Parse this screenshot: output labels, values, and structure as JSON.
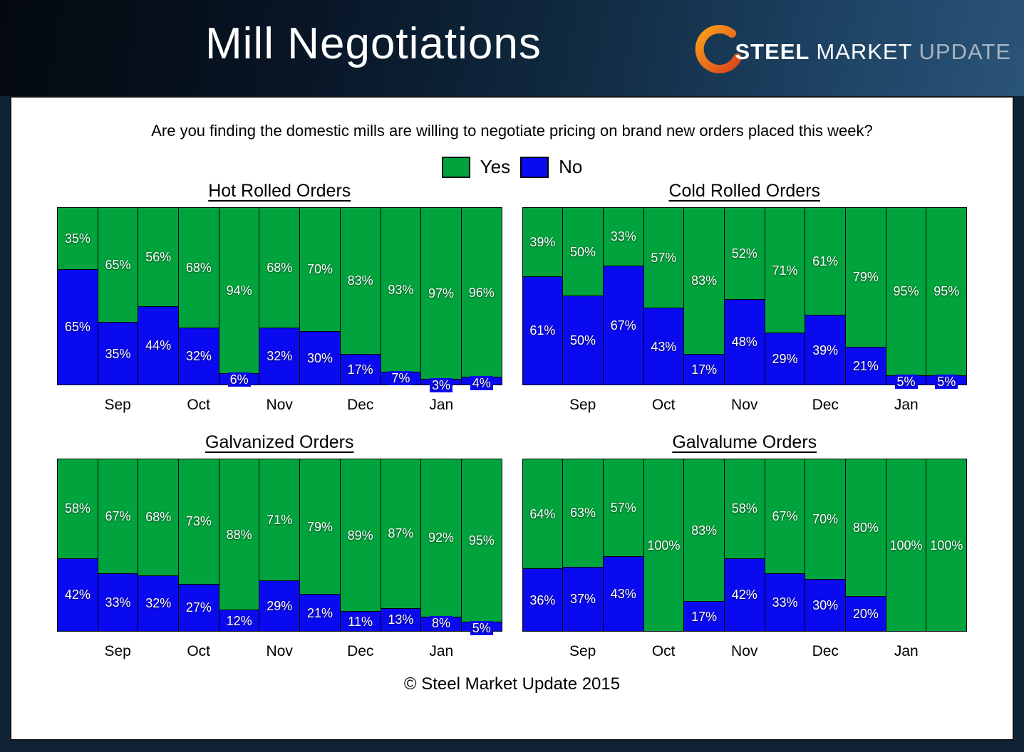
{
  "header": {
    "title": "Mill Negotiations",
    "logo": {
      "steel": "STEEL",
      "market": "MARKET",
      "update": "UPDATE",
      "accent_color": "#f58220"
    }
  },
  "question": "Are you finding the domestic mills are willing to negotiate pricing on brand new orders placed this week?",
  "legend": [
    {
      "label": "Yes",
      "color": "#00a33c"
    },
    {
      "label": "No",
      "color": "#0a0af0"
    }
  ],
  "footer": "© Steel Market Update 2015",
  "chart_data": [
    {
      "type": "bar",
      "stacked": true,
      "title": "Hot Rolled Orders",
      "unit": "%",
      "ylim": [
        0,
        100
      ],
      "n_bars": 11,
      "x_tick_labels": [
        "Sep",
        "Oct",
        "Nov",
        "Dec",
        "Jan"
      ],
      "series": [
        {
          "name": "Yes",
          "color": "#00a33c",
          "values": [
            35,
            65,
            56,
            68,
            94,
            68,
            70,
            83,
            93,
            97,
            96
          ]
        },
        {
          "name": "No",
          "color": "#0a0af0",
          "values": [
            65,
            35,
            44,
            32,
            6,
            32,
            30,
            17,
            7,
            3,
            4
          ]
        }
      ]
    },
    {
      "type": "bar",
      "stacked": true,
      "title": "Cold Rolled Orders",
      "unit": "%",
      "ylim": [
        0,
        100
      ],
      "n_bars": 11,
      "x_tick_labels": [
        "Sep",
        "Oct",
        "Nov",
        "Dec",
        "Jan"
      ],
      "series": [
        {
          "name": "Yes",
          "color": "#00a33c",
          "values": [
            39,
            50,
            33,
            57,
            83,
            52,
            71,
            61,
            79,
            95,
            95
          ]
        },
        {
          "name": "No",
          "color": "#0a0af0",
          "values": [
            61,
            50,
            67,
            43,
            17,
            48,
            29,
            39,
            21,
            5,
            5
          ]
        }
      ]
    },
    {
      "type": "bar",
      "stacked": true,
      "title": "Galvanized Orders",
      "unit": "%",
      "ylim": [
        0,
        100
      ],
      "n_bars": 11,
      "x_tick_labels": [
        "Sep",
        "Oct",
        "Nov",
        "Dec",
        "Jan"
      ],
      "series": [
        {
          "name": "Yes",
          "color": "#00a33c",
          "values": [
            58,
            67,
            68,
            73,
            88,
            71,
            79,
            89,
            87,
            92,
            95
          ]
        },
        {
          "name": "No",
          "color": "#0a0af0",
          "values": [
            42,
            33,
            32,
            27,
            12,
            29,
            21,
            11,
            13,
            8,
            5
          ]
        }
      ]
    },
    {
      "type": "bar",
      "stacked": true,
      "title": "Galvalume Orders",
      "unit": "%",
      "ylim": [
        0,
        100
      ],
      "n_bars": 11,
      "x_tick_labels": [
        "Sep",
        "Oct",
        "Nov",
        "Dec",
        "Jan"
      ],
      "series": [
        {
          "name": "Yes",
          "color": "#00a33c",
          "values": [
            64,
            63,
            57,
            100,
            83,
            58,
            67,
            70,
            80,
            100,
            100
          ]
        },
        {
          "name": "No",
          "color": "#0a0af0",
          "values": [
            36,
            37,
            43,
            0,
            17,
            42,
            33,
            30,
            20,
            0,
            0
          ]
        }
      ]
    }
  ]
}
